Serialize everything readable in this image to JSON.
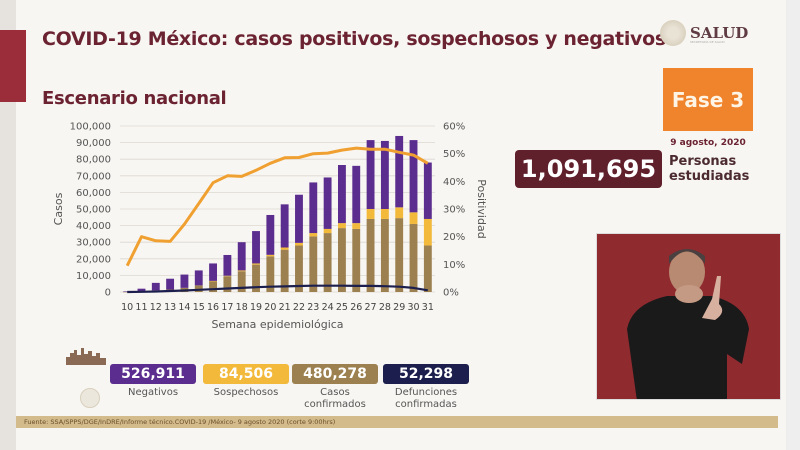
{
  "header": {
    "title": "COVID-19 México: casos positivos, sospechosos y negativos",
    "subtitle": "Escenario nacional"
  },
  "logo": {
    "text": "SALUD",
    "subtext": "SECRETARÍA DE SALUD"
  },
  "phase": {
    "label": "Fase 3",
    "date": "9 agosto, 2020"
  },
  "studied": {
    "value": "1,091,695",
    "label_line1": "Personas",
    "label_line2": "estudiadas"
  },
  "stats": [
    {
      "value": "526,911",
      "label": "Negativos",
      "color": "#5b2d8e"
    },
    {
      "value": "84,506",
      "label": "Sospechosos",
      "color": "#f2b93b"
    },
    {
      "value": "480,278",
      "label": "Casos confirmados",
      "color": "#9c8050"
    },
    {
      "value": "52,298",
      "label": "Defunciones confirmadas",
      "color": "#1c1f4d"
    }
  ],
  "footer": {
    "source": "Fuente: SSA/SPPS/DGE/InDRE/Informe técnico.COVID-19 /México- 9 agosto 2020 (corte 9:00hrs)"
  },
  "colors": {
    "negativos": "#5b2d8e",
    "sospechosos": "#f2b93b",
    "confirmados": "#9c8050",
    "defunciones": "#1c1f4d",
    "positividad": "#f0a030",
    "title": "#6b2231",
    "fase": "#f0842c",
    "studied_bg": "#5f1f2b"
  },
  "chart_data": {
    "type": "bar",
    "stacked": true,
    "title": "Escenario nacional",
    "xlabel": "Semana epidemiológica",
    "ylabel": "Casos",
    "y2label": "Positividad",
    "ylim": [
      0,
      100000
    ],
    "y2lim": [
      0,
      60
    ],
    "yticks": [
      "0",
      "10,000",
      "20,000",
      "30,000",
      "40,000",
      "50,000",
      "60,000",
      "70,000",
      "80,000",
      "90,000",
      "100,000"
    ],
    "y2ticks": [
      "0%",
      "10%",
      "20%",
      "30%",
      "40%",
      "50%",
      "60%"
    ],
    "grid": true,
    "categories": [
      "10",
      "11",
      "12",
      "13",
      "14",
      "15",
      "16",
      "17",
      "18",
      "19",
      "20",
      "21",
      "22",
      "23",
      "24",
      "25",
      "26",
      "27",
      "28",
      "29",
      "30",
      "31"
    ],
    "series": [
      {
        "name": "Confirmados",
        "type": "bar",
        "color": "#9c8050",
        "values": [
          100,
          500,
          1000,
          1500,
          2500,
          4000,
          6500,
          9500,
          12500,
          16500,
          21500,
          25500,
          28000,
          33500,
          35500,
          38500,
          38000,
          44000,
          44000,
          44500,
          41000,
          28000
        ]
      },
      {
        "name": "Sospechosos",
        "type": "bar",
        "color": "#f2b93b",
        "values": [
          0,
          0,
          0,
          0,
          0,
          0,
          200,
          300,
          500,
          700,
          900,
          1300,
          1600,
          2000,
          2500,
          3000,
          3500,
          6000,
          6000,
          6500,
          7000,
          16000
        ]
      },
      {
        "name": "Negativos",
        "type": "bar",
        "color": "#5b2d8e",
        "values": [
          300,
          1500,
          4500,
          6500,
          8000,
          9000,
          10500,
          12500,
          17000,
          19500,
          24000,
          26000,
          29000,
          30500,
          31000,
          35000,
          34500,
          41500,
          41000,
          43000,
          43500,
          34000
        ]
      },
      {
        "name": "Defunciones",
        "type": "line",
        "color": "#1c1f4d",
        "values": [
          20,
          100,
          300,
          600,
          900,
          1300,
          1700,
          2100,
          2500,
          2900,
          3200,
          3400,
          3600,
          3800,
          3800,
          3800,
          3700,
          3700,
          3500,
          3200,
          2500,
          1000
        ]
      },
      {
        "name": "Positividad (%)",
        "type": "line",
        "axis": "right",
        "color": "#f0a030",
        "values": [
          9.5,
          20,
          18.5,
          18.3,
          24.5,
          32,
          39.5,
          42,
          41.8,
          44,
          46.5,
          48.5,
          48.6,
          50,
          50.2,
          51.3,
          52,
          51.6,
          51.6,
          50.5,
          49.5,
          46.5
        ]
      }
    ],
    "legend": "none"
  },
  "video": {
    "description": "sign language interpreter"
  }
}
